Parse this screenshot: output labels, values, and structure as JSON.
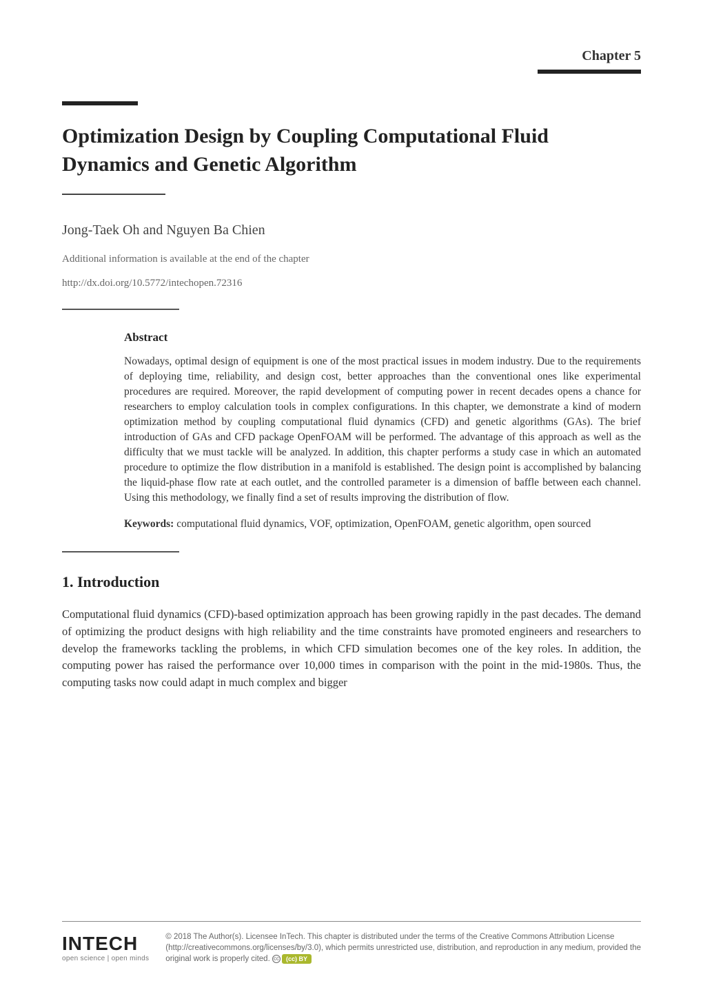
{
  "chapter": {
    "label": "Chapter 5",
    "title": "Optimization Design by Coupling Computational Fluid Dynamics and Genetic Algorithm",
    "authors": "Jong-Taek Oh and Nguyen Ba Chien",
    "additional_info": "Additional information is available at the end of the chapter",
    "doi": "http://dx.doi.org/10.5772/intechopen.72316"
  },
  "abstract": {
    "heading": "Abstract",
    "body": "Nowadays, optimal design of equipment is one of the most practical issues in modem industry. Due to the requirements of deploying time, reliability, and design cost, better approaches than the conventional ones like experimental procedures are required. Moreover, the rapid development of computing power in recent decades opens a chance for researchers to employ calculation tools in complex configurations. In this chapter, we demonstrate a kind of modern optimization method by coupling computational fluid dynamics (CFD) and genetic algorithms (GAs). The brief introduction of GAs and CFD package OpenFOAM will be performed. The advantage of this approach as well as the difficulty that we must tackle will be analyzed. In addition, this chapter performs a study case in which an automated procedure to optimize the flow distribution in a manifold is established. The design point is accomplished by balancing the liquid-phase flow rate at each outlet, and the controlled parameter is a dimension of baffle between each channel. Using this methodology, we finally find a set of results improving the distribution of flow.",
    "keywords_label": "Keywords:",
    "keywords_text": " computational fluid dynamics, VOF, optimization, OpenFOAM, genetic algorithm, open sourced"
  },
  "intro": {
    "heading": "1. Introduction",
    "body": "Computational fluid dynamics (CFD)-based optimization approach has been growing rapidly in the past decades. The demand of optimizing the product designs with high reliability and the time constraints have promoted engineers and researchers to develop the frameworks tackling the problems, in which CFD simulation becomes one of the key roles. In addition, the computing power has raised the performance over 10,000 times in comparison with the point in the mid-1980s. Thus, the computing tasks now could adapt in much complex and bigger"
  },
  "footer": {
    "logo": "INTECH",
    "tagline": "open science | open minds",
    "copyright": "© 2018 The Author(s). Licensee InTech. This chapter is distributed under the terms of the Creative Commons Attribution License (http://creativecommons.org/licenses/by/3.0), which permits unrestricted use, distribution, and reproduction in any medium, provided the original work is properly cited.",
    "cc_badge": "(cc) BY"
  }
}
